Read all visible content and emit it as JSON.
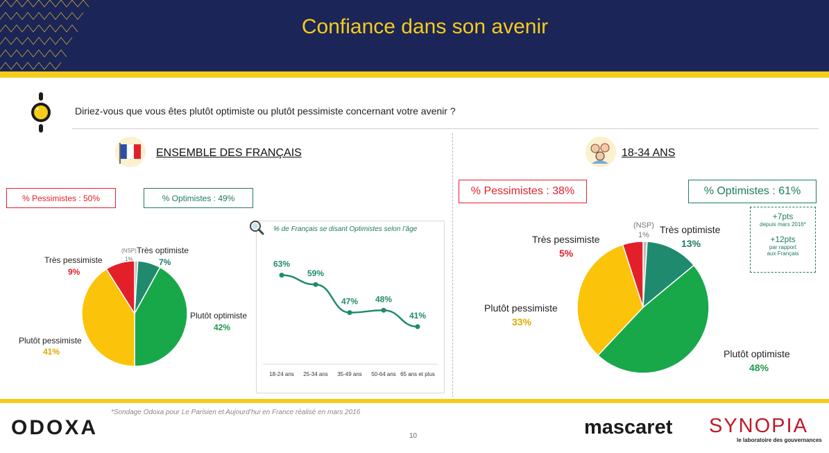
{
  "header": {
    "title": "Confiance dans son avenir"
  },
  "question": "Diriez-vous que vous êtes plutôt optimiste ou plutôt pessimiste concernant votre avenir ?",
  "left": {
    "title": "ENSEMBLE DES FRANÇAIS",
    "pessimists": "% Pessimistes : 50%",
    "optimists": "% Optimistes : 49%"
  },
  "right": {
    "title": "18-34 ANS",
    "pessimists": "% Pessimistes : 38%",
    "optimists": "% Optimistes : 61%",
    "evolution": {
      "a_value": "+7pts",
      "a_note": "depuis mars 2016*",
      "b_value": "+12pts",
      "b_note_1": "par rapport",
      "b_note_2": "aux Français"
    }
  },
  "colors": {
    "navy": "#1b2557",
    "gold": "#f5cc1b",
    "red": "#e3202a",
    "amber": "#fcc30b",
    "teal": "#1f8a6e",
    "green": "#18a84a",
    "gray": "#bfbfbf"
  },
  "chart_data": [
    {
      "type": "pie",
      "labels": [
        "(NSP)",
        "Très optimiste",
        "Plutôt optimiste",
        "Plutôt pessimiste",
        "Très pessimiste"
      ],
      "values": [
        1,
        7,
        42,
        41,
        9
      ],
      "value_labels": [
        "1%",
        "7%",
        "42%",
        "41%",
        "9%"
      ]
    },
    {
      "type": "line",
      "title": "% de Français se disant Optimistes selon l’âge",
      "categories": [
        "18-24 ans",
        "25-34 ans",
        "35-49 ans",
        "50-64 ans",
        "65 ans et plus"
      ],
      "values": [
        63,
        59,
        47,
        48,
        41
      ],
      "value_labels": [
        "63%",
        "59%",
        "47%",
        "48%",
        "41%"
      ],
      "ylim": [
        30,
        70
      ]
    },
    {
      "type": "pie",
      "labels": [
        "(NSP)",
        "Très optimiste",
        "Plutôt optimiste",
        "Plutôt pessimiste",
        "Très pessimiste"
      ],
      "values": [
        1,
        13,
        48,
        33,
        5
      ],
      "value_labels": [
        "1%",
        "13%",
        "48%",
        "33%",
        "5%"
      ]
    }
  ],
  "footer": {
    "note": "*Sondage Odoxa pour Le Parisien et Aujourd’hui en France réalisé en mars 2016",
    "page": "10",
    "logo_odoxa": "ODOXA",
    "logo_mascaret": "mascaret",
    "logo_synopia": "SYNOPIA",
    "synopia_tagline": "le laboratoire des gouvernances"
  }
}
